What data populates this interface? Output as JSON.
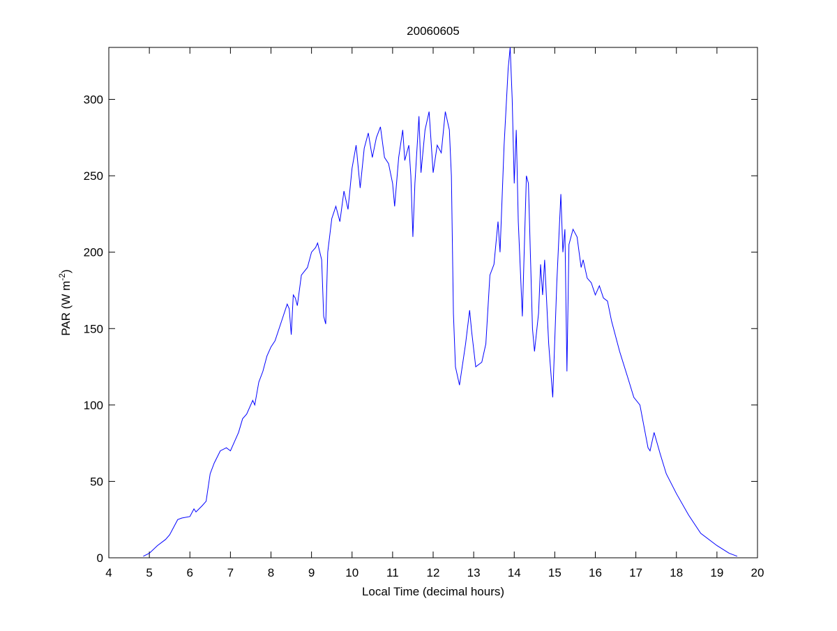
{
  "chart_data": {
    "type": "line",
    "title": "20060605",
    "xlabel": "Local Time (decimal hours)",
    "ylabel": {
      "text": "PAR (W m",
      "superscript": "-2",
      "suffix": ")"
    },
    "color": "#0000ff",
    "x": [
      4.85,
      5.0,
      5.2,
      5.4,
      5.5,
      5.6,
      5.7,
      5.8,
      6.0,
      6.1,
      6.15,
      6.3,
      6.4,
      6.5,
      6.6,
      6.75,
      6.9,
      7.0,
      7.1,
      7.2,
      7.3,
      7.4,
      7.5,
      7.55,
      7.6,
      7.7,
      7.8,
      7.9,
      8.0,
      8.1,
      8.2,
      8.3,
      8.4,
      8.45,
      8.5,
      8.55,
      8.6,
      8.65,
      8.75,
      8.9,
      9.0,
      9.1,
      9.15,
      9.25,
      9.3,
      9.35,
      9.4,
      9.5,
      9.6,
      9.7,
      9.8,
      9.9,
      10.0,
      10.1,
      10.2,
      10.3,
      10.4,
      10.5,
      10.6,
      10.7,
      10.8,
      10.9,
      11.0,
      11.05,
      11.15,
      11.25,
      11.3,
      11.4,
      11.45,
      11.5,
      11.55,
      11.65,
      11.7,
      11.8,
      11.9,
      12.0,
      12.1,
      12.2,
      12.3,
      12.4,
      12.45,
      12.5,
      12.55,
      12.65,
      12.8,
      12.9,
      12.95,
      13.05,
      13.2,
      13.3,
      13.4,
      13.5,
      13.6,
      13.65,
      13.75,
      13.85,
      13.9,
      13.95,
      14.0,
      14.05,
      14.1,
      14.2,
      14.3,
      14.35,
      14.45,
      14.5,
      14.6,
      14.65,
      14.7,
      14.75,
      14.85,
      14.95,
      15.05,
      15.15,
      15.2,
      15.25,
      15.3,
      15.35,
      15.45,
      15.55,
      15.65,
      15.7,
      15.8,
      15.9,
      16.0,
      16.1,
      16.2,
      16.3,
      16.4,
      16.6,
      16.8,
      16.95,
      17.1,
      17.3,
      17.35,
      17.45,
      17.6,
      17.75,
      18.0,
      18.3,
      18.6,
      19.0,
      19.3,
      19.5
    ],
    "values": [
      1,
      3,
      8,
      12,
      15,
      20,
      25,
      26,
      27,
      32,
      30,
      34,
      37,
      55,
      62,
      70,
      72,
      70,
      76,
      82,
      91,
      94,
      100,
      103,
      100,
      115,
      122,
      132,
      138,
      142,
      150,
      158,
      166,
      163,
      146,
      172,
      170,
      165,
      185,
      190,
      200,
      203,
      206,
      195,
      158,
      153,
      200,
      222,
      230,
      220,
      240,
      228,
      255,
      270,
      242,
      268,
      278,
      262,
      275,
      282,
      262,
      258,
      245,
      230,
      262,
      280,
      260,
      270,
      250,
      210,
      245,
      289,
      252,
      280,
      292,
      252,
      270,
      265,
      292,
      280,
      250,
      160,
      125,
      113,
      140,
      162,
      148,
      125,
      128,
      140,
      185,
      192,
      220,
      200,
      270,
      320,
      334,
      300,
      245,
      280,
      220,
      158,
      250,
      245,
      150,
      135,
      160,
      192,
      172,
      195,
      140,
      105,
      180,
      238,
      200,
      215,
      122,
      205,
      215,
      210,
      190,
      195,
      183,
      180,
      172,
      178,
      170,
      168,
      155,
      135,
      118,
      105,
      100,
      72,
      70,
      82,
      68,
      55,
      42,
      28,
      16,
      8,
      3,
      1
    ],
    "xlim": [
      4,
      20
    ],
    "ylim": [
      0,
      334
    ],
    "xticks": [
      4,
      5,
      6,
      7,
      8,
      9,
      10,
      11,
      12,
      13,
      14,
      15,
      16,
      17,
      18,
      19,
      20
    ],
    "yticks": [
      0,
      50,
      100,
      150,
      200,
      250,
      300
    ]
  }
}
